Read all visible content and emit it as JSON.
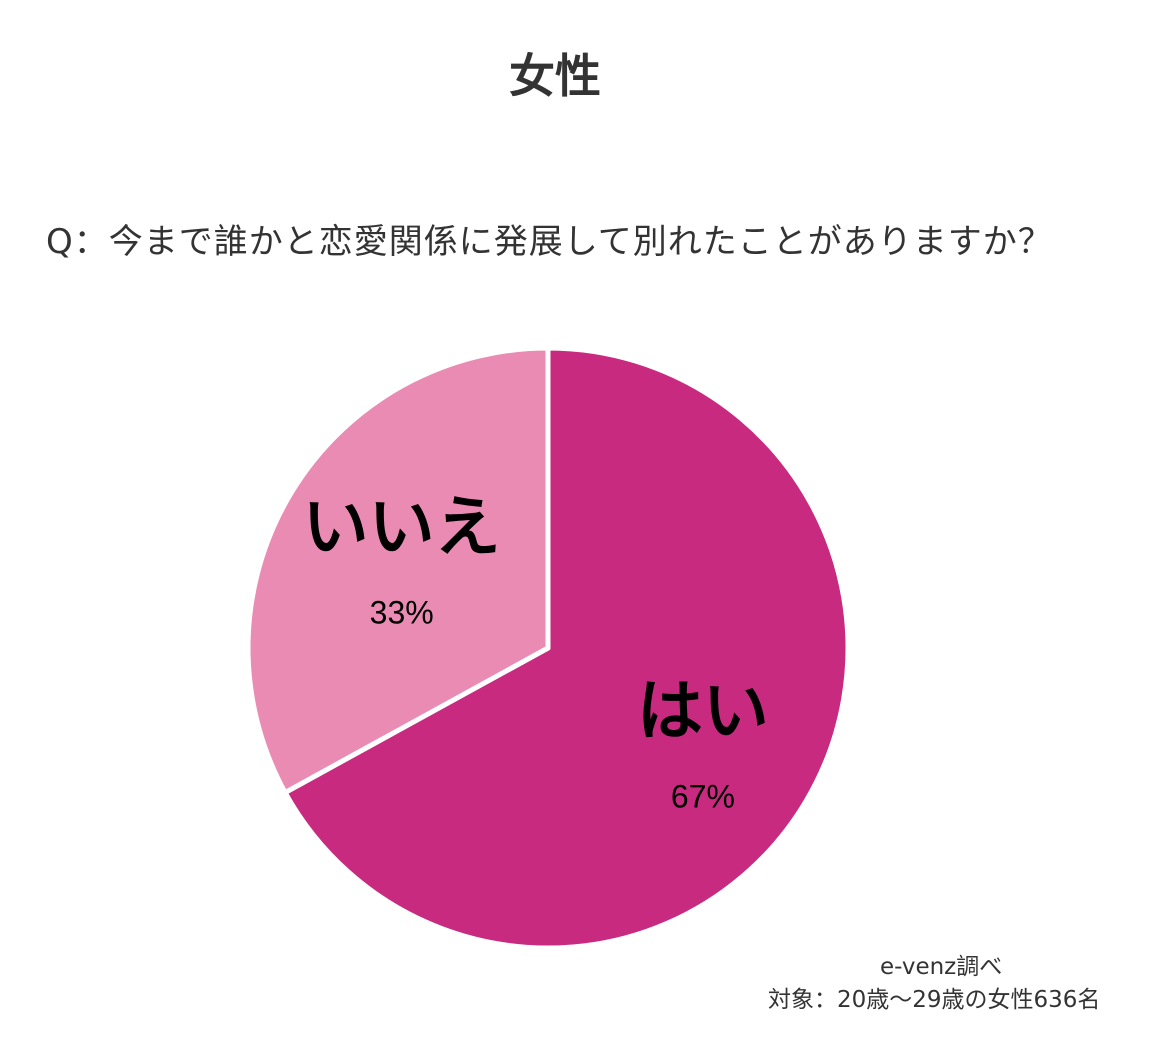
{
  "chart_data": {
    "type": "pie",
    "title": "女性",
    "subtitle": "Q：今まで誰かと恋愛関係に発展して別れたことがありますか？",
    "categories": [
      "はい",
      "いいえ"
    ],
    "values": [
      67,
      33
    ],
    "value_labels": [
      "67%",
      "33%"
    ],
    "colors": [
      "#c72a7e",
      "#e98bb2"
    ],
    "legend": "none"
  },
  "footer": {
    "source": "e-venz調べ",
    "target": "対象：20歳〜29歳の女性636名"
  }
}
